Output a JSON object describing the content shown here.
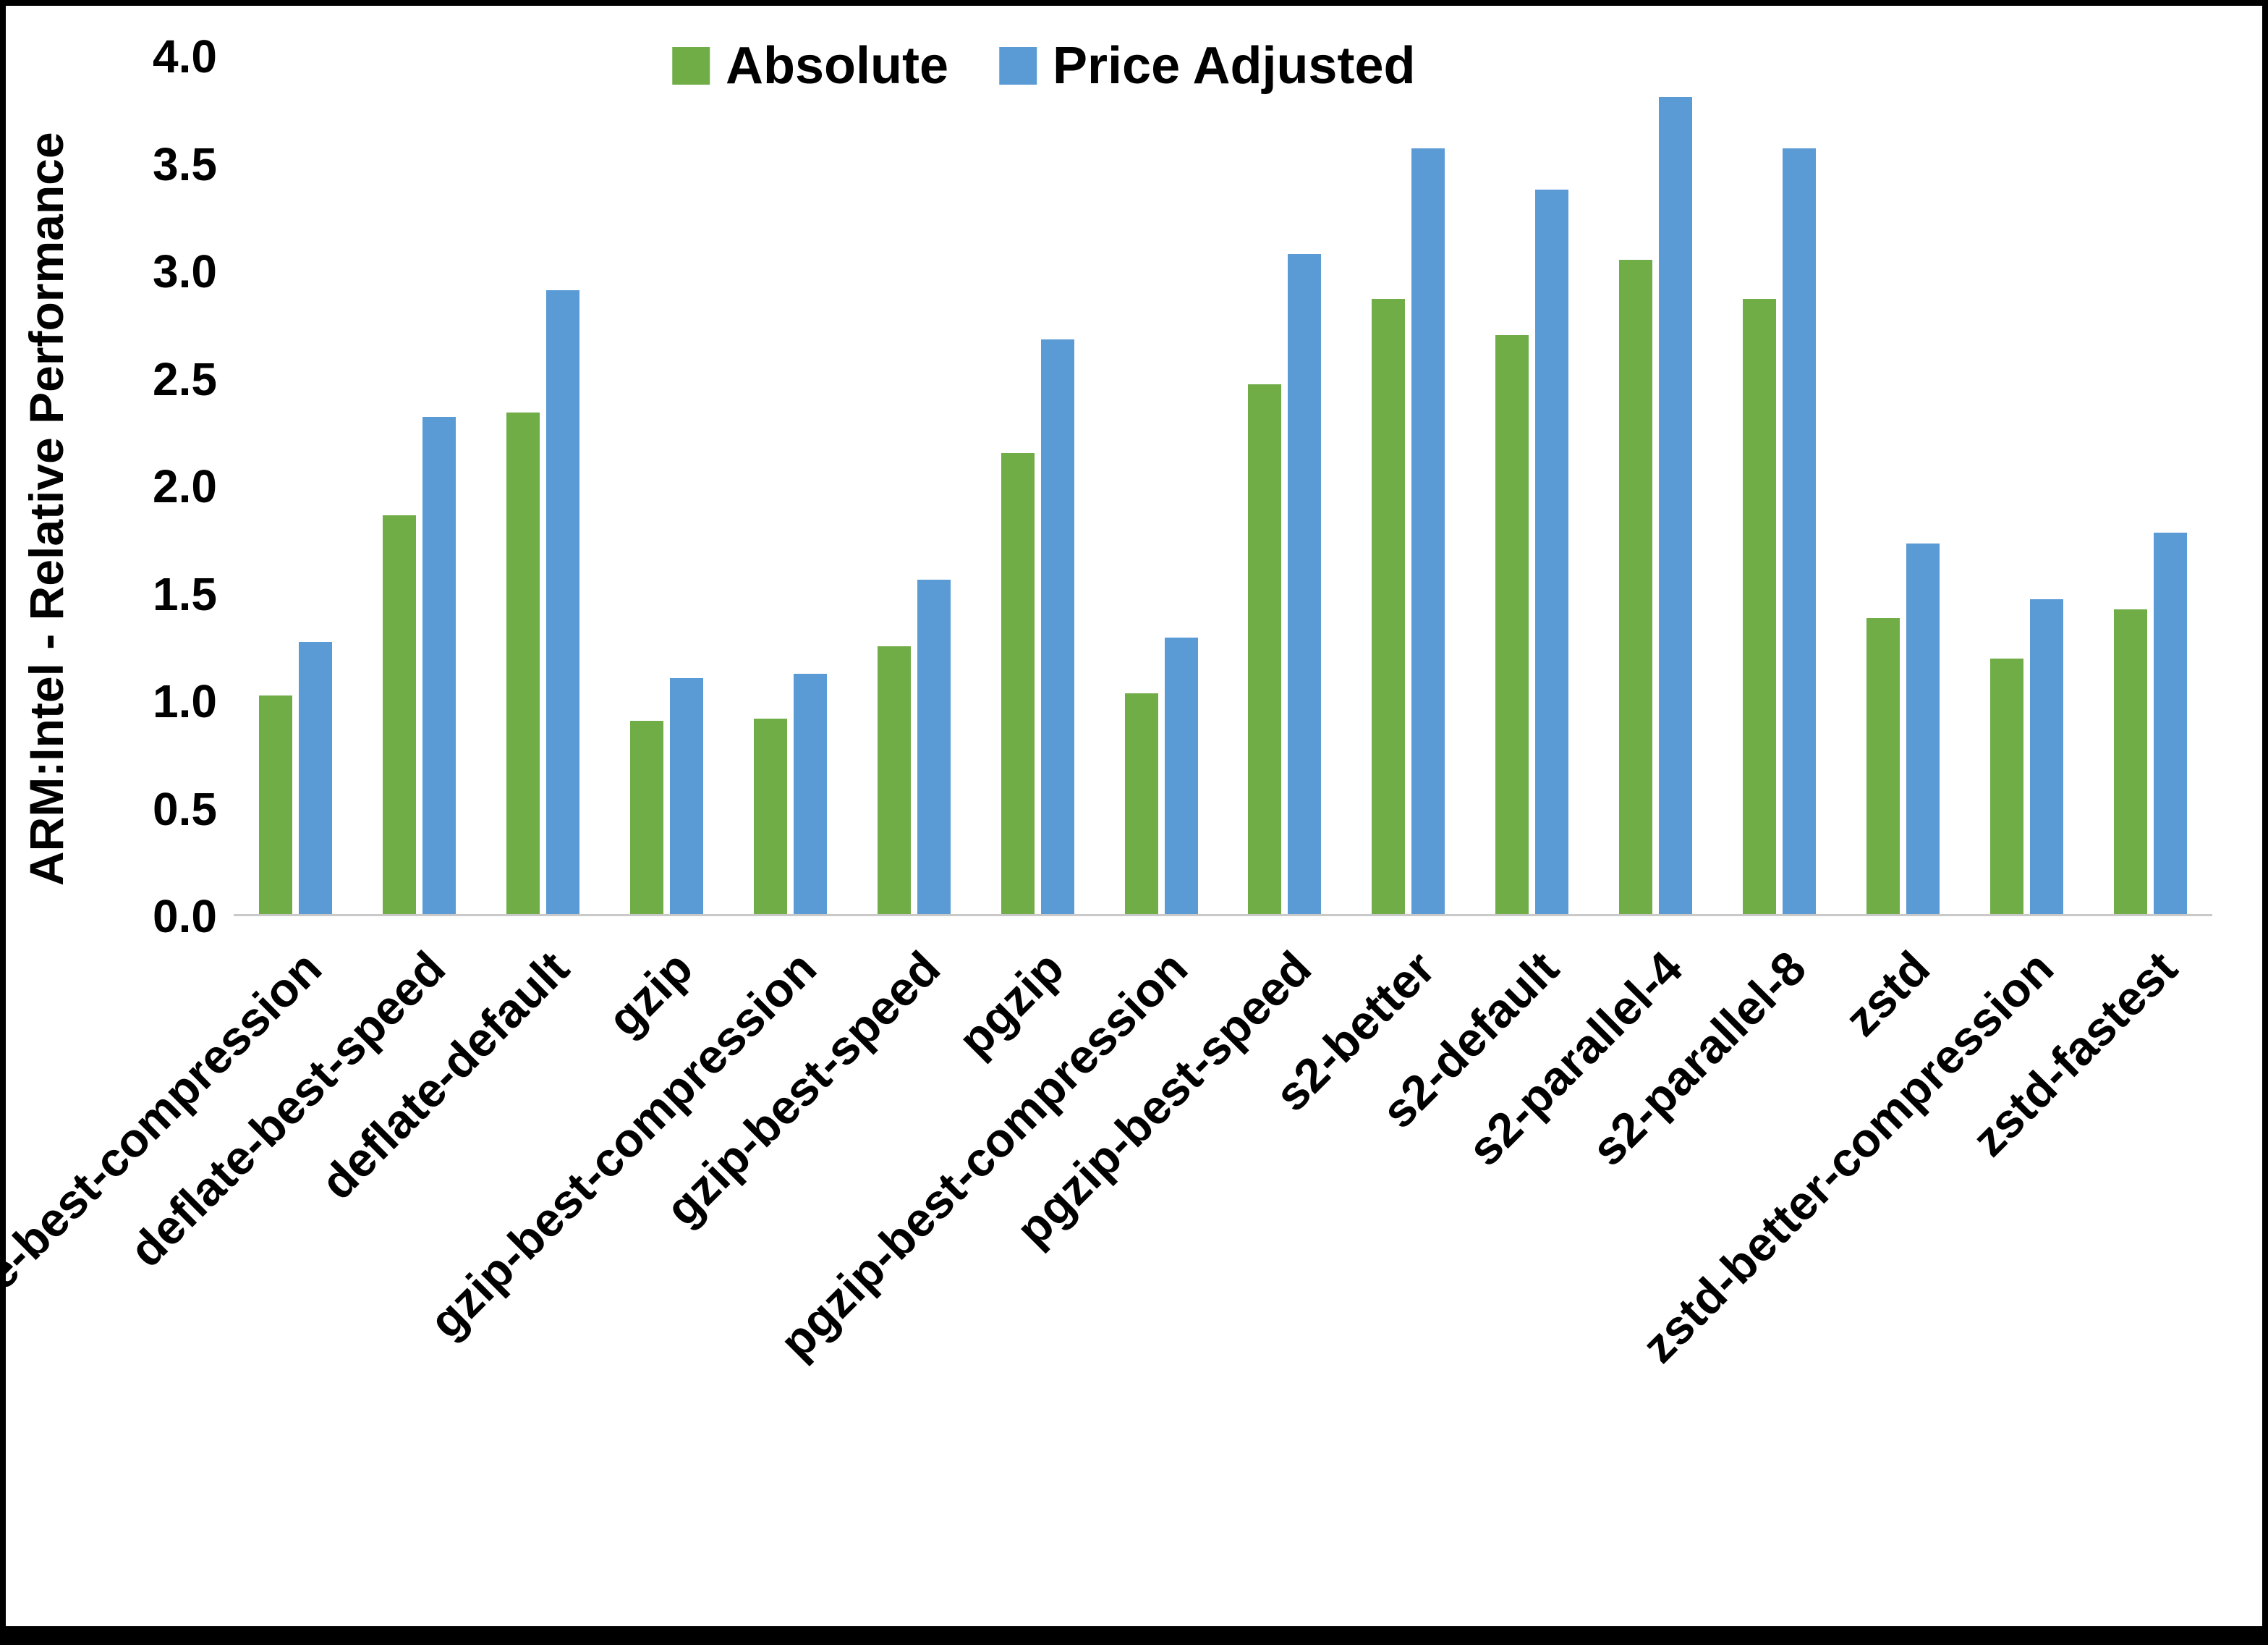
{
  "chart_data": {
    "type": "bar",
    "title": "",
    "xlabel": "",
    "ylabel": "ARM:Intel - Relative Performance",
    "ylim": [
      0,
      4.0
    ],
    "yticks": [
      0.0,
      0.5,
      1.0,
      1.5,
      2.0,
      2.5,
      3.0,
      3.5,
      4.0
    ],
    "grid": false,
    "legend_position": "top-center",
    "categories": [
      "deflate-best-compression",
      "deflate-best-speed",
      "deflate-default",
      "gzip",
      "gzip-best-compression",
      "gzip-best-speed",
      "pgzip",
      "pgzip-best-compression",
      "pgzip-best-speed",
      "s2-better",
      "s2-default",
      "s2-parallel-4",
      "s2-parallel-8",
      "zstd",
      "zstd-better-compression",
      "zstd-fastest"
    ],
    "series": [
      {
        "name": "Absolute",
        "color": "#70AD47",
        "values": [
          1.02,
          1.86,
          2.34,
          0.9,
          0.91,
          1.25,
          2.15,
          1.03,
          2.47,
          2.87,
          2.7,
          3.05,
          2.87,
          1.38,
          1.19,
          1.42
        ]
      },
      {
        "name": "Price Adjusted",
        "color": "#5B9BD5",
        "values": [
          1.27,
          2.32,
          2.91,
          1.1,
          1.12,
          1.56,
          2.68,
          1.29,
          3.08,
          3.57,
          3.38,
          3.81,
          3.57,
          1.73,
          1.47,
          1.78
        ]
      }
    ]
  }
}
